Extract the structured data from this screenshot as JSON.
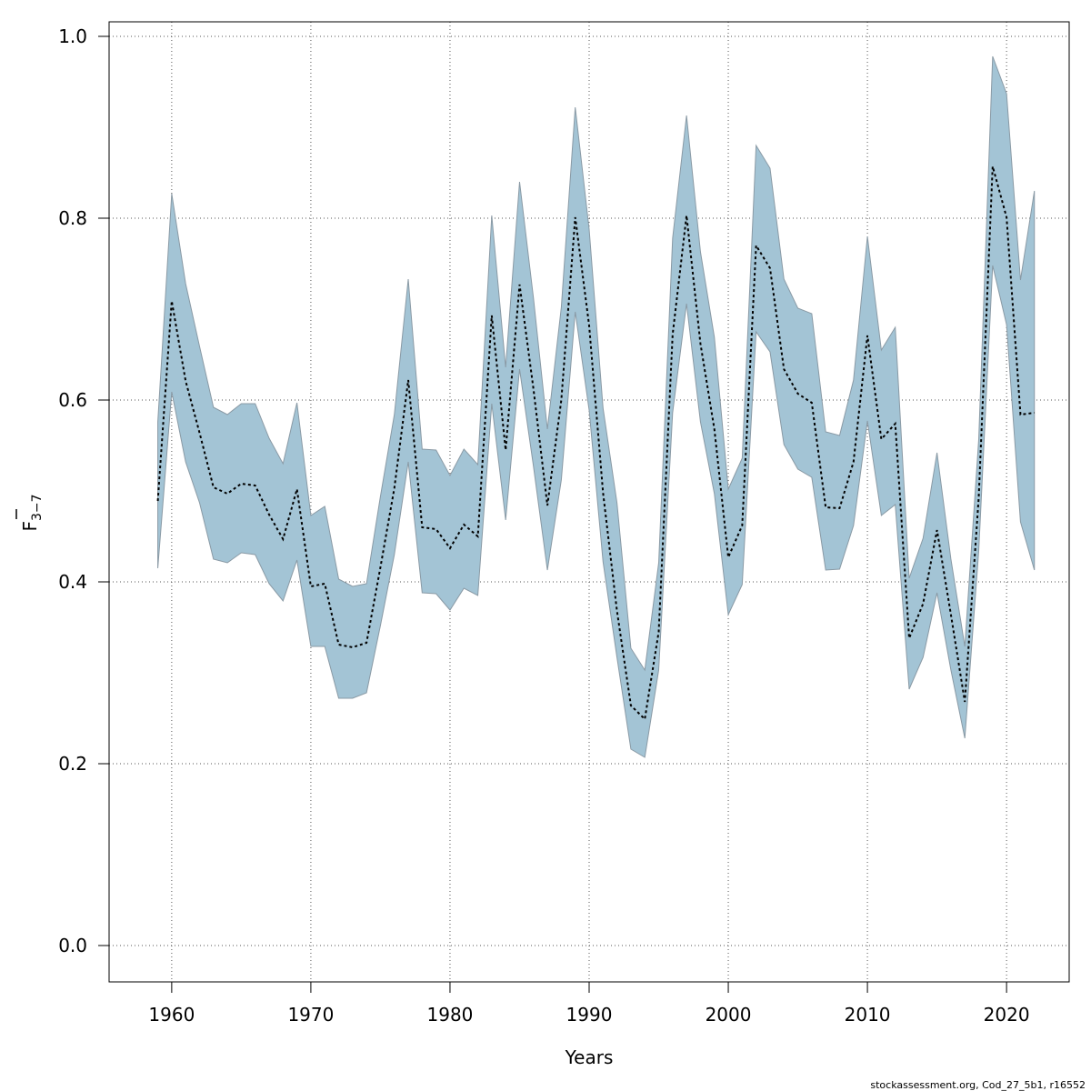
{
  "chart_data": {
    "type": "line",
    "title": "",
    "xlabel": "Years",
    "ylabel_main": "F",
    "ylabel_sub": "3−7",
    "xlim": [
      1955.5,
      2024.5
    ],
    "ylim": [
      -0.04,
      1.016
    ],
    "x_ticks": [
      1960,
      1970,
      1980,
      1990,
      2000,
      2010,
      2020
    ],
    "y_ticks": [
      0.0,
      0.2,
      0.4,
      0.6,
      0.8,
      1.0
    ],
    "y_tick_labels": [
      "0.0",
      "0.2",
      "0.4",
      "0.6",
      "0.8",
      "1.0"
    ],
    "grid": true,
    "band_color": "#a3c4d5",
    "band_edge_color": "#8a9aa5",
    "line_color": "#000000",
    "years": [
      1959,
      1960,
      1961,
      1962,
      1963,
      1964,
      1965,
      1966,
      1967,
      1968,
      1969,
      1970,
      1971,
      1972,
      1973,
      1974,
      1975,
      1976,
      1977,
      1978,
      1979,
      1980,
      1981,
      1982,
      1983,
      1984,
      1985,
      1986,
      1987,
      1988,
      1989,
      1990,
      1991,
      1992,
      1993,
      1994,
      1995,
      1996,
      1997,
      1998,
      1999,
      2000,
      2001,
      2002,
      2003,
      2004,
      2005,
      2006,
      2007,
      2008,
      2009,
      2010,
      2011,
      2012,
      2013,
      2014,
      2015,
      2016,
      2017,
      2018,
      2019,
      2020,
      2021,
      2022
    ],
    "series": [
      {
        "name": "estimate",
        "values": [
          0.489,
          0.709,
          0.621,
          0.564,
          0.504,
          0.497,
          0.508,
          0.506,
          0.474,
          0.447,
          0.502,
          0.395,
          0.398,
          0.331,
          0.328,
          0.333,
          0.416,
          0.503,
          0.622,
          0.46,
          0.458,
          0.437,
          0.463,
          0.45,
          0.693,
          0.545,
          0.727,
          0.612,
          0.484,
          0.6,
          0.801,
          0.682,
          0.498,
          0.368,
          0.264,
          0.249,
          0.345,
          0.672,
          0.803,
          0.662,
          0.568,
          0.427,
          0.462,
          0.77,
          0.745,
          0.634,
          0.607,
          0.597,
          0.482,
          0.481,
          0.532,
          0.671,
          0.557,
          0.574,
          0.338,
          0.376,
          0.457,
          0.364,
          0.268,
          0.493,
          0.857,
          0.801,
          0.584,
          0.586
        ]
      },
      {
        "name": "upper",
        "values": [
          0.576,
          0.827,
          0.728,
          0.659,
          0.592,
          0.584,
          0.596,
          0.596,
          0.558,
          0.53,
          0.597,
          0.473,
          0.483,
          0.403,
          0.395,
          0.398,
          0.494,
          0.584,
          0.733,
          0.546,
          0.545,
          0.517,
          0.546,
          0.529,
          0.803,
          0.636,
          0.84,
          0.712,
          0.568,
          0.702,
          0.922,
          0.788,
          0.591,
          0.487,
          0.327,
          0.303,
          0.421,
          0.778,
          0.913,
          0.763,
          0.669,
          0.502,
          0.536,
          0.88,
          0.855,
          0.733,
          0.701,
          0.695,
          0.565,
          0.561,
          0.622,
          0.78,
          0.655,
          0.68,
          0.404,
          0.448,
          0.542,
          0.425,
          0.329,
          0.557,
          0.978,
          0.937,
          0.732,
          0.83
        ]
      },
      {
        "name": "lower",
        "values": [
          0.415,
          0.609,
          0.532,
          0.487,
          0.425,
          0.421,
          0.432,
          0.43,
          0.398,
          0.379,
          0.424,
          0.329,
          0.329,
          0.272,
          0.272,
          0.278,
          0.352,
          0.43,
          0.532,
          0.388,
          0.387,
          0.369,
          0.393,
          0.385,
          0.596,
          0.468,
          0.634,
          0.527,
          0.413,
          0.512,
          0.697,
          0.589,
          0.422,
          0.317,
          0.216,
          0.207,
          0.303,
          0.586,
          0.706,
          0.576,
          0.497,
          0.364,
          0.397,
          0.675,
          0.653,
          0.551,
          0.524,
          0.515,
          0.413,
          0.414,
          0.462,
          0.577,
          0.473,
          0.485,
          0.282,
          0.317,
          0.388,
          0.303,
          0.228,
          0.434,
          0.748,
          0.683,
          0.466,
          0.413
        ]
      }
    ]
  },
  "footer": "stockassessment.org, Cod_27_5b1, r16552"
}
